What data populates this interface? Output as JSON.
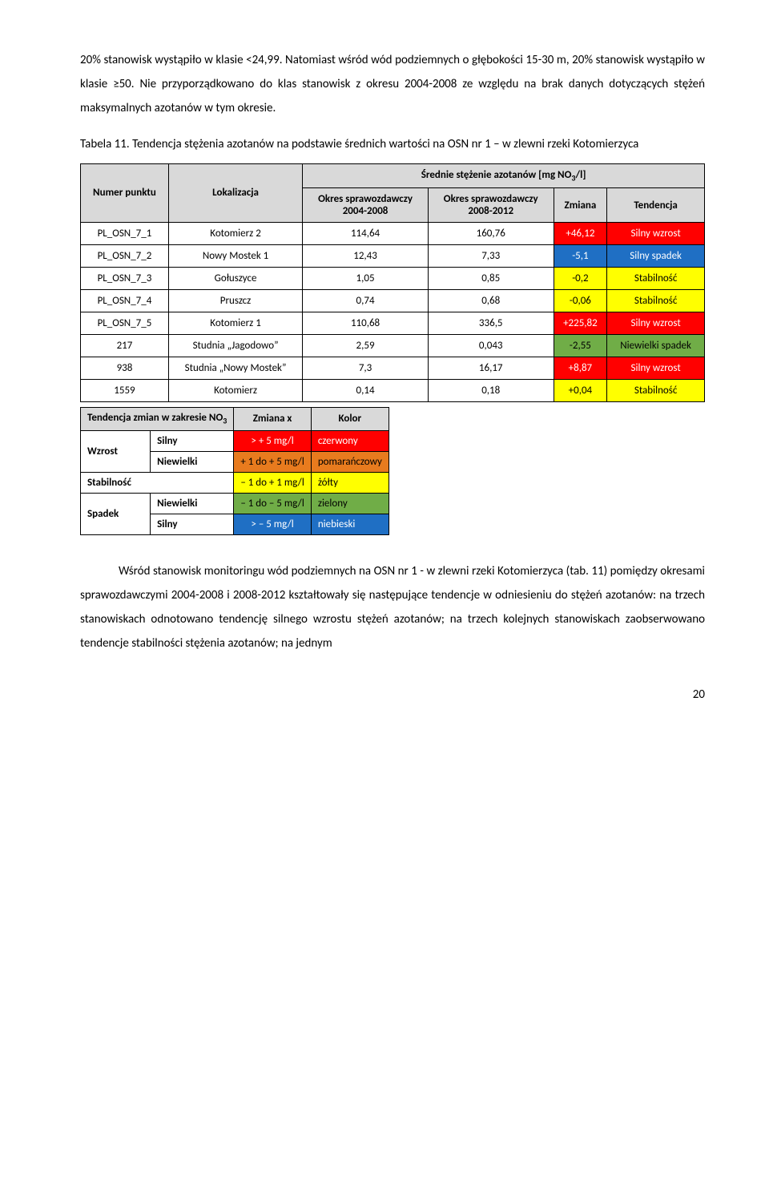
{
  "intro_text": "20% stanowisk wystąpiło w klasie <24,99. Natomiast wśród wód podziemnych o głębokości 15-30 m, 20% stanowisk wystąpiło w klasie ≥50. Nie przyporządkowano do klas stanowisk z okresu 2004-2008 ze względu na brak danych dotyczących stężeń maksymalnych azotanów w tym okresie.",
  "table_caption": "Tabela 11. Tendencja stężenia azotanów na podstawie średnich wartości na OSN nr 1 – w zlewni rzeki Kotomierzyca",
  "main_table": {
    "super_header_html": "Średnie stężenie azotanów [mg NO<span class=\"sub\">3</span>/l]",
    "header": {
      "col1": "Numer punktu",
      "col2": "Lokalizacja",
      "col3_line1": "Okres sprawozdawczy",
      "col3_line2": "2004-2008",
      "col4_line1": "Okres sprawozdawczy",
      "col4_line2": "2008-2012",
      "col5": "Zmiana",
      "col6": "Tendencja"
    },
    "rows": [
      {
        "num": "PL_OSN_7_1",
        "loc": "Kotomierz 2",
        "p1": "114,64",
        "p2": "160,76",
        "change": "+46,12",
        "trend": "Silny wzrost",
        "change_bg": "#ff0000",
        "change_color": "#ffffff",
        "trend_bg": "#ff0000",
        "trend_color": "#ffffff"
      },
      {
        "num": "PL_OSN_7_2",
        "loc": "Nowy Mostek 1",
        "p1": "12,43",
        "p2": "7,33",
        "change": "-5,1",
        "trend": "Silny spadek",
        "change_bg": "#1f6fc4",
        "change_color": "#ffffff",
        "trend_bg": "#1f6fc4",
        "trend_color": "#ffffff"
      },
      {
        "num": "PL_OSN_7_3",
        "loc": "Gołuszyce",
        "p1": "1,05",
        "p2": "0,85",
        "change": "-0,2",
        "trend": "Stabilność",
        "change_bg": "#ffff00",
        "change_color": "#000000",
        "trend_bg": "#ffff00",
        "trend_color": "#000000"
      },
      {
        "num": "PL_OSN_7_4",
        "loc": "Pruszcz",
        "p1": "0,74",
        "p2": "0,68",
        "change": "-0,06",
        "trend": "Stabilność",
        "change_bg": "#ffff00",
        "change_color": "#000000",
        "trend_bg": "#ffff00",
        "trend_color": "#000000"
      },
      {
        "num": "PL_OSN_7_5",
        "loc": "Kotomierz 1",
        "p1": "110,68",
        "p2": "336,5",
        "change": "+225,82",
        "trend": "Silny wzrost",
        "change_bg": "#ff0000",
        "change_color": "#ffffff",
        "trend_bg": "#ff0000",
        "trend_color": "#ffffff"
      },
      {
        "num": "217",
        "loc": "Studnia „Jagodowo”",
        "p1": "2,59",
        "p2": "0,043",
        "change": "-2,55",
        "trend": "Niewielki spadek",
        "change_bg": "#70ad47",
        "change_color": "#000000",
        "trend_bg": "#70ad47",
        "trend_color": "#000000"
      },
      {
        "num": "938",
        "loc": "Studnia „Nowy Mostek”",
        "p1": "7,3",
        "p2": "16,17",
        "change": "+8,87",
        "trend": "Silny wzrost",
        "change_bg": "#ff0000",
        "change_color": "#ffffff",
        "trend_bg": "#ff0000",
        "trend_color": "#ffffff"
      },
      {
        "num": "1559",
        "loc": "Kotomierz",
        "p1": "0,14",
        "p2": "0,18",
        "change": "+0,04",
        "trend": "Stabilność",
        "change_bg": "#ffff00",
        "change_color": "#000000",
        "trend_bg": "#ffff00",
        "trend_color": "#000000"
      }
    ]
  },
  "legend": {
    "header_html": "Tendencja zmian w zakresie NO<span class=\"sub\">3</span>",
    "col2_header": "Zmiana x",
    "col3_header": "Kolor",
    "rows": [
      {
        "g1": "Wzrost",
        "g1span": 2,
        "sub": "Silny",
        "range": "> + 5 mg/l",
        "color_label": "czerwony",
        "range_bg": "#ff0000",
        "range_color": "#ffffff",
        "clabel_bg": "#ff0000",
        "clabel_color": "#ffffff"
      },
      {
        "sub": "Niewielki",
        "range": "+ 1 do + 5 mg/l",
        "color_label": "pomarańczowy",
        "range_bg": "#e87b1e",
        "range_color": "#000000",
        "clabel_bg": "#e87b1e",
        "clabel_color": "#000000"
      },
      {
        "g1": "Stabilność",
        "g1colspan": 2,
        "range": "– 1 do + 1 mg/l",
        "color_label": "żółty",
        "range_bg": "#ffff00",
        "range_color": "#000000",
        "clabel_bg": "#ffff00",
        "clabel_color": "#000000"
      },
      {
        "g1": "Spadek",
        "g1span": 2,
        "sub": "Niewielki",
        "range": "– 1 do – 5 mg/l",
        "color_label": "zielony",
        "range_bg": "#70ad47",
        "range_color": "#000000",
        "clabel_bg": "#70ad47",
        "clabel_color": "#000000"
      },
      {
        "sub": "Silny",
        "range": "> – 5 mg/l",
        "color_label": "niebieski",
        "range_bg": "#1f6fc4",
        "range_color": "#ffffff",
        "clabel_bg": "#1f6fc4",
        "clabel_color": "#ffffff"
      }
    ]
  },
  "outro_text": "Wśród stanowisk monitoringu wód podziemnych na OSN nr 1 - w zlewni rzeki Kotomierzyca (tab. 11) pomiędzy okresami sprawozdawczymi 2004-2008 i 2008-2012 kształtowały się następujące tendencje w odniesieniu do stężeń azotanów: na trzech stanowiskach odnotowano tendencję silnego wzrostu stężeń azotanów; na trzech kolejnych stanowiskach zaobserwowano tendencje stabilności stężenia azotanów; na jednym",
  "page_number": "20"
}
